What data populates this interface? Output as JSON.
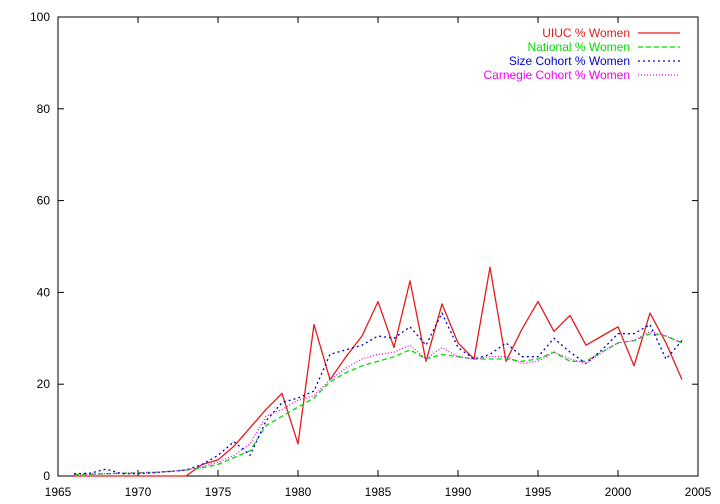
{
  "chart_data": {
    "type": "line",
    "xlim": [
      1965,
      2005
    ],
    "ylim": [
      0,
      100
    ],
    "x_ticks": [
      1965,
      1970,
      1975,
      1980,
      1985,
      1990,
      1995,
      2000,
      2005
    ],
    "y_ticks": [
      0,
      20,
      40,
      60,
      80,
      100
    ],
    "grid": false,
    "legend_position": "top-right",
    "series": [
      {
        "name": "UIUC % Women",
        "color": "#e41a1c",
        "dash": "solid",
        "points": [
          [
            1966,
            0
          ],
          [
            1967,
            0
          ],
          [
            1968,
            0
          ],
          [
            1969,
            0
          ],
          [
            1970,
            0
          ],
          [
            1971,
            0
          ],
          [
            1972,
            0
          ],
          [
            1973,
            0
          ],
          [
            1974,
            2.5
          ],
          [
            1975,
            3.5
          ],
          [
            1976,
            6.5
          ],
          [
            1977,
            10.5
          ],
          [
            1978,
            14.5
          ],
          [
            1979,
            18
          ],
          [
            1980,
            7
          ],
          [
            1981,
            33
          ],
          [
            1982,
            21
          ],
          [
            1983,
            26
          ],
          [
            1984,
            30.5
          ],
          [
            1985,
            38
          ],
          [
            1986,
            28
          ],
          [
            1987,
            42.5
          ],
          [
            1988,
            25
          ],
          [
            1989,
            37.5
          ],
          [
            1990,
            29
          ],
          [
            1991,
            25.5
          ],
          [
            1992,
            45.5
          ],
          [
            1993,
            25
          ],
          [
            1994,
            32
          ],
          [
            1995,
            38
          ],
          [
            1996,
            31.5
          ],
          [
            1997,
            35
          ],
          [
            1998,
            28.5
          ],
          [
            1999,
            30.5
          ],
          [
            2000,
            32.5
          ],
          [
            2001,
            24
          ],
          [
            2002,
            35.5
          ],
          [
            2003,
            29
          ],
          [
            2004,
            21
          ]
        ]
      },
      {
        "name": "National % Women",
        "color": "#00dd00",
        "dash": "dashed",
        "points": [
          [
            1966,
            0.3
          ],
          [
            1967,
            0.4
          ],
          [
            1968,
            0.5
          ],
          [
            1969,
            0.6
          ],
          [
            1970,
            0.7
          ],
          [
            1971,
            0.8
          ],
          [
            1972,
            1
          ],
          [
            1973,
            1.3
          ],
          [
            1974,
            1.8
          ],
          [
            1975,
            2.5
          ],
          [
            1976,
            4
          ],
          [
            1977,
            5.5
          ],
          [
            1978,
            11
          ],
          [
            1979,
            13
          ],
          [
            1980,
            15
          ],
          [
            1981,
            17
          ],
          [
            1982,
            20.5
          ],
          [
            1983,
            22.5
          ],
          [
            1984,
            24
          ],
          [
            1985,
            25
          ],
          [
            1986,
            26
          ],
          [
            1987,
            27.5
          ],
          [
            1988,
            25.5
          ],
          [
            1989,
            26.5
          ],
          [
            1990,
            26
          ],
          [
            1991,
            25.5
          ],
          [
            1992,
            25.5
          ],
          [
            1993,
            25.5
          ],
          [
            1994,
            25
          ],
          [
            1995,
            25.5
          ],
          [
            1996,
            27
          ],
          [
            1997,
            25
          ],
          [
            1998,
            25
          ],
          [
            1999,
            27
          ],
          [
            2000,
            29
          ],
          [
            2001,
            29.5
          ],
          [
            2002,
            31
          ],
          [
            2003,
            30.5
          ],
          [
            2004,
            29
          ]
        ]
      },
      {
        "name": "Size Cohort % Women",
        "color": "#0000cc",
        "dash": "dotted",
        "points": [
          [
            1966,
            0.5
          ],
          [
            1967,
            0.6
          ],
          [
            1968,
            1.5
          ],
          [
            1969,
            0.5
          ],
          [
            1970,
            0.5
          ],
          [
            1971,
            0.7
          ],
          [
            1972,
            1
          ],
          [
            1973,
            1.3
          ],
          [
            1974,
            2.5
          ],
          [
            1975,
            4.5
          ],
          [
            1976,
            7.5
          ],
          [
            1977,
            4.5
          ],
          [
            1978,
            12
          ],
          [
            1979,
            16
          ],
          [
            1980,
            17
          ],
          [
            1981,
            18.5
          ],
          [
            1982,
            26.5
          ],
          [
            1983,
            27.5
          ],
          [
            1984,
            28.5
          ],
          [
            1985,
            30.5
          ],
          [
            1986,
            30
          ],
          [
            1987,
            32.5
          ],
          [
            1988,
            28.5
          ],
          [
            1989,
            35.5
          ],
          [
            1990,
            28
          ],
          [
            1991,
            25.5
          ],
          [
            1992,
            26.5
          ],
          [
            1993,
            29
          ],
          [
            1994,
            26
          ],
          [
            1995,
            26
          ],
          [
            1996,
            30
          ],
          [
            1997,
            27
          ],
          [
            1998,
            24.5
          ],
          [
            1999,
            27.5
          ],
          [
            2000,
            31
          ],
          [
            2001,
            31
          ],
          [
            2002,
            33
          ],
          [
            2003,
            25.5
          ],
          [
            2004,
            29.5
          ]
        ]
      },
      {
        "name": "Carnegie Cohort % Women",
        "color": "#ee00ee",
        "dash": "fine-dotted",
        "points": [
          [
            1966,
            0.3
          ],
          [
            1967,
            0.4
          ],
          [
            1968,
            0.5
          ],
          [
            1969,
            0.6
          ],
          [
            1970,
            0.7
          ],
          [
            1971,
            0.8
          ],
          [
            1972,
            1
          ],
          [
            1973,
            1.3
          ],
          [
            1974,
            2
          ],
          [
            1975,
            3
          ],
          [
            1976,
            4.5
          ],
          [
            1977,
            7
          ],
          [
            1978,
            13
          ],
          [
            1979,
            14.5
          ],
          [
            1980,
            16.5
          ],
          [
            1981,
            17.5
          ],
          [
            1982,
            21
          ],
          [
            1983,
            23.5
          ],
          [
            1984,
            25.5
          ],
          [
            1985,
            26.5
          ],
          [
            1986,
            27
          ],
          [
            1987,
            28.5
          ],
          [
            1988,
            25.5
          ],
          [
            1989,
            28
          ],
          [
            1990,
            26
          ],
          [
            1991,
            25.5
          ],
          [
            1992,
            26
          ],
          [
            1993,
            26
          ],
          [
            1994,
            24.5
          ],
          [
            1995,
            25
          ],
          [
            1996,
            27
          ],
          [
            1997,
            25.5
          ],
          [
            1998,
            24.5
          ],
          [
            1999,
            27
          ],
          [
            2000,
            29
          ],
          [
            2001,
            29.5
          ],
          [
            2002,
            31.5
          ],
          [
            2003,
            30.5
          ],
          [
            2004,
            29
          ]
        ]
      }
    ]
  }
}
